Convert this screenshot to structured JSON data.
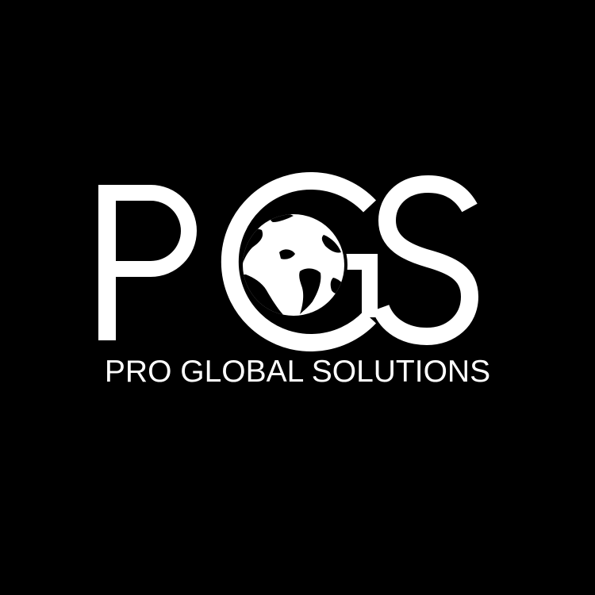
{
  "logo": {
    "monogram": {
      "letters": [
        "P",
        "G",
        "S"
      ],
      "text": "PGS"
    },
    "tagline": "PRO GLOBAL SOLUTIONS",
    "globe_icon": "globe-americas-icon"
  },
  "colors": {
    "background": "#000000",
    "foreground": "#ffffff"
  }
}
